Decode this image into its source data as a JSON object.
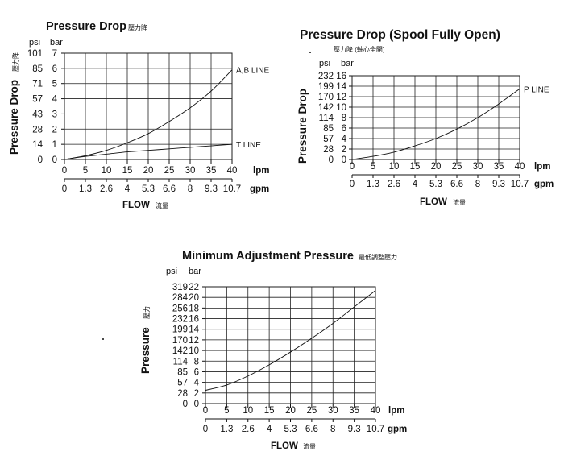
{
  "charts": [
    {
      "id": "pressure-drop",
      "title": "Pressure Drop",
      "title_cn": "壓力降",
      "ylabel": "Pressure Drop",
      "ylabel_cn": "壓力降",
      "psi_unit": "psi",
      "bar_unit": "bar",
      "lpm_unit": "lpm",
      "gpm_unit": "gpm",
      "xlabel": "FLOW",
      "xlabel_cn": "流量",
      "psi_ticks": [
        "101",
        "85",
        "71",
        "57",
        "43",
        "28",
        "14",
        "0"
      ],
      "bar_ticks": [
        "7",
        "6",
        "5",
        "4",
        "3",
        "2",
        "1",
        "0"
      ],
      "lpm_ticks": [
        "0",
        "5",
        "10",
        "15",
        "20",
        "25",
        "30",
        "35",
        "40"
      ],
      "gpm_ticks": [
        "0",
        "1.3",
        "2.6",
        "4",
        "5.3",
        "6.6",
        "8",
        "9.3",
        "10.7"
      ]
    },
    {
      "id": "pressure-drop-spool-open",
      "title": "Pressure Drop (Spool Fully Open)",
      "title_cn": "壓力降 (軸心全開)",
      "ylabel": "Pressure Drop",
      "psi_unit": "psi",
      "bar_unit": "bar",
      "lpm_unit": "lpm",
      "gpm_unit": "gpm",
      "xlabel": "FLOW",
      "xlabel_cn": "流量",
      "psi_ticks": [
        "232",
        "199",
        "170",
        "142",
        "114",
        "85",
        "57",
        "28",
        "0"
      ],
      "bar_ticks": [
        "16",
        "14",
        "12",
        "10",
        "8",
        "6",
        "4",
        "2",
        "0"
      ],
      "lpm_ticks": [
        "0",
        "5",
        "10",
        "15",
        "20",
        "25",
        "30",
        "35",
        "40"
      ],
      "gpm_ticks": [
        "0",
        "1.3",
        "2.6",
        "4",
        "5.3",
        "6.6",
        "8",
        "9.3",
        "10.7"
      ]
    },
    {
      "id": "minimum-adjustment-pressure",
      "title": "Minimum Adjustment Pressure",
      "title_cn": "最低調整壓力",
      "ylabel": "Pressure",
      "ylabel_cn": "壓力",
      "psi_unit": "psi",
      "bar_unit": "bar",
      "lpm_unit": "lpm",
      "gpm_unit": "gpm",
      "xlabel": "FLOW",
      "xlabel_cn": "流量",
      "psi_ticks": [
        "319",
        "284",
        "256",
        "232",
        "199",
        "170",
        "142",
        "114",
        "85",
        "57",
        "28",
        "0"
      ],
      "bar_ticks": [
        "22",
        "20",
        "18",
        "16",
        "14",
        "12",
        "10",
        "8",
        "6",
        "4",
        "2",
        "0"
      ],
      "lpm_ticks": [
        "0",
        "5",
        "10",
        "15",
        "20",
        "25",
        "30",
        "35",
        "40"
      ],
      "gpm_ticks": [
        "0",
        "1.3",
        "2.6",
        "4",
        "5.3",
        "6.6",
        "8",
        "9.3",
        "10.7"
      ]
    }
  ],
  "chart_data": [
    {
      "type": "line",
      "title": "Pressure Drop",
      "xlabel": "FLOW",
      "ylabel": "Pressure Drop",
      "xlim": [
        0,
        40
      ],
      "ylim": [
        0,
        7
      ],
      "grid": true,
      "series": [
        {
          "name": "A,B LINE",
          "x": [
            0,
            5,
            10,
            15,
            20,
            25,
            30,
            35,
            40
          ],
          "y": [
            0,
            0.25,
            0.6,
            1.1,
            1.7,
            2.5,
            3.4,
            4.5,
            5.9
          ]
        },
        {
          "name": "T LINE",
          "x": [
            0,
            5,
            10,
            15,
            20,
            25,
            30,
            35,
            40
          ],
          "y": [
            0,
            0.2,
            0.35,
            0.5,
            0.6,
            0.7,
            0.8,
            0.9,
            1.0
          ]
        }
      ]
    },
    {
      "type": "line",
      "title": "Pressure Drop (Spool Fully Open)",
      "xlabel": "FLOW",
      "ylabel": "Pressure Drop",
      "xlim": [
        0,
        40
      ],
      "ylim": [
        0,
        16
      ],
      "grid": true,
      "series": [
        {
          "name": "P LINE",
          "x": [
            0,
            5,
            10,
            15,
            20,
            25,
            30,
            35,
            40
          ],
          "y": [
            0,
            0.6,
            1.4,
            2.6,
            4.0,
            5.8,
            8.0,
            10.6,
            13.5
          ]
        }
      ]
    },
    {
      "type": "line",
      "title": "Minimum Adjustment Pressure",
      "xlabel": "FLOW",
      "ylabel": "Pressure",
      "xlim": [
        0,
        40
      ],
      "ylim": [
        0,
        22
      ],
      "grid": true,
      "series": [
        {
          "x": [
            0,
            5,
            10,
            15,
            20,
            25,
            30,
            35,
            40
          ],
          "y": [
            2.5,
            3.5,
            5.2,
            7.3,
            9.7,
            12.3,
            15.1,
            18.2,
            21.3
          ]
        }
      ]
    }
  ]
}
